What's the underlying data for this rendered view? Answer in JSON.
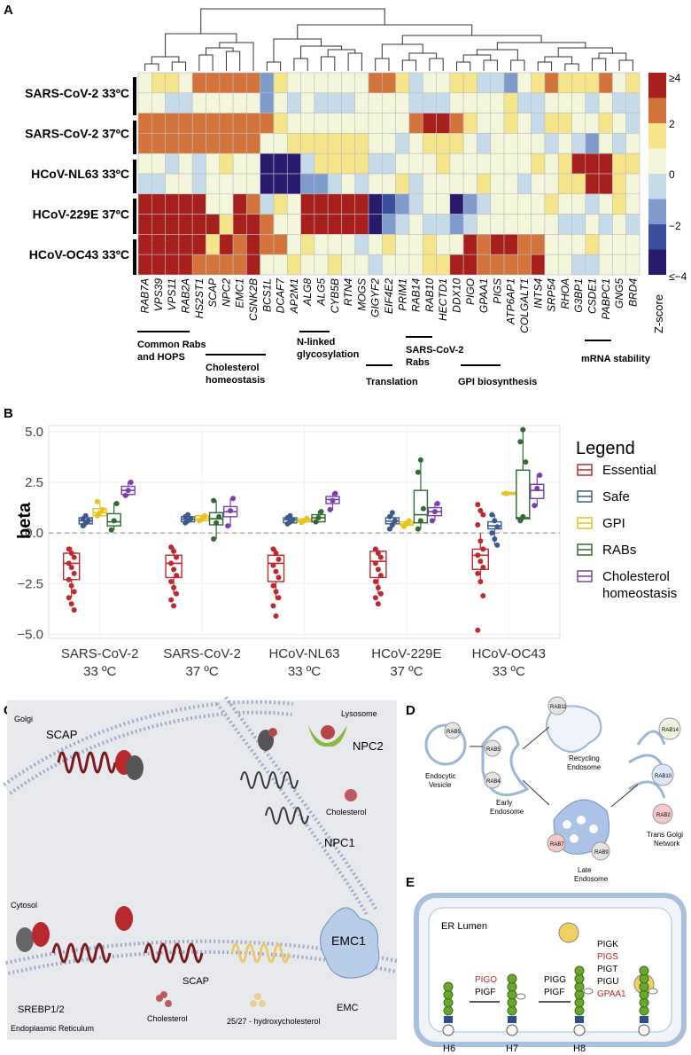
{
  "panels": {
    "a": "A",
    "b": "B",
    "c": "C",
    "d": "D",
    "e": "E"
  },
  "heatmap": {
    "rows": [
      "SARS-CoV-2 33ºC",
      "SARS-CoV-2 37ºC",
      "HCoV-NL63 33ºC",
      "HCoV-229E 37ºC",
      "HCoV-OC43 33ºC"
    ],
    "cols": [
      "RAB7A",
      "VPS39",
      "VPS11",
      "RAB2A",
      "HS2ST1",
      "SCAP",
      "NPC2",
      "EMC1",
      "CSNK2B",
      "BCS1L",
      "DCAF7",
      "AP2M1",
      "ALG8",
      "ALG5",
      "CYB5B",
      "RTN4",
      "MOGS",
      "GIGYF2",
      "EIF4E2",
      "PRIM1",
      "RAB14",
      "RAB10",
      "HECTD1",
      "DDX10",
      "PIGO",
      "GPAA1",
      "PIGS",
      "ATP6AP1",
      "COLGALT1",
      "INTS4",
      "SRP54",
      "RHOA",
      "G3BP1",
      "CSDE1",
      "PABPC1",
      "GNG5",
      "BRD4"
    ],
    "groups": {
      "rabs_hops": "Common Rabs\nand HOPS",
      "cholesterol": "Cholesterol\nhomeostasis",
      "nlinked": "N-linked\nglycosylation",
      "translation": "Translation",
      "sarsrabs": "SARS-CoV-2\nRabs",
      "gpi": "GPI biosynthesis",
      "mrna": "mRNA stability"
    },
    "colorbar": {
      "title": "Z-score",
      "ticks": [
        "≥4",
        "2",
        "0",
        "−2",
        "≤−4"
      ]
    },
    "palette": [
      "#2a1a6e",
      "#3a4f9e",
      "#7f9bcb",
      "#c6dbe9",
      "#f3f6da",
      "#f6e48a",
      "#d2743c",
      "#a8201e"
    ],
    "cells": [
      [
        4,
        5,
        5,
        4,
        6,
        6,
        6,
        6,
        6,
        2,
        5,
        4,
        4,
        4,
        4,
        4,
        4,
        6,
        6,
        5,
        3,
        4,
        4,
        5,
        5,
        3,
        3,
        2,
        4,
        5,
        6,
        5,
        5,
        5,
        6,
        4,
        5
      ],
      [
        4,
        4,
        3,
        3,
        4,
        4,
        4,
        4,
        4,
        2,
        4,
        3,
        4,
        3,
        3,
        3,
        4,
        4,
        4,
        4,
        3,
        3,
        3,
        4,
        4,
        4,
        4,
        5,
        3,
        3,
        4,
        4,
        4,
        3,
        4,
        3,
        3
      ],
      [
        6,
        6,
        6,
        6,
        6,
        6,
        6,
        6,
        6,
        6,
        5,
        4,
        4,
        4,
        4,
        4,
        4,
        4,
        4,
        4,
        6,
        7,
        7,
        6,
        5,
        4,
        4,
        5,
        4,
        3,
        5,
        5,
        4,
        4,
        5,
        4,
        3
      ],
      [
        6,
        6,
        6,
        6,
        6,
        6,
        6,
        6,
        6,
        4,
        4,
        5,
        5,
        5,
        5,
        5,
        5,
        4,
        4,
        3,
        4,
        5,
        5,
        5,
        4,
        3,
        4,
        4,
        4,
        4,
        3,
        4,
        3,
        2,
        4,
        3,
        4
      ],
      [
        4,
        4,
        3,
        4,
        3,
        4,
        5,
        4,
        4,
        0,
        0,
        0,
        3,
        5,
        5,
        5,
        5,
        3,
        3,
        4,
        4,
        4,
        5,
        4,
        4,
        4,
        4,
        4,
        4,
        5,
        4,
        5,
        7,
        7,
        7,
        5,
        5
      ],
      [
        3,
        3,
        4,
        4,
        3,
        4,
        4,
        4,
        4,
        0,
        0,
        0,
        2,
        2,
        3,
        4,
        3,
        4,
        4,
        5,
        3,
        4,
        4,
        4,
        4,
        5,
        4,
        4,
        3,
        4,
        4,
        5,
        5,
        7,
        7,
        5,
        4
      ],
      [
        7,
        7,
        7,
        7,
        7,
        4,
        4,
        7,
        6,
        3,
        5,
        4,
        7,
        7,
        7,
        7,
        7,
        0,
        1,
        2,
        3,
        4,
        4,
        0,
        2,
        3,
        4,
        4,
        4,
        4,
        5,
        4,
        4,
        3,
        4,
        5,
        4
      ],
      [
        7,
        7,
        7,
        7,
        7,
        7,
        5,
        7,
        7,
        6,
        4,
        4,
        7,
        7,
        7,
        7,
        7,
        0,
        2,
        3,
        4,
        3,
        3,
        2,
        3,
        4,
        4,
        4,
        4,
        4,
        4,
        3,
        3,
        4,
        3,
        4,
        3
      ],
      [
        7,
        7,
        7,
        7,
        7,
        5,
        7,
        6,
        7,
        6,
        6,
        4,
        5,
        4,
        4,
        4,
        3,
        4,
        5,
        4,
        4,
        5,
        4,
        4,
        7,
        6,
        7,
        7,
        6,
        6,
        4,
        4,
        4,
        5,
        4,
        4,
        4
      ],
      [
        7,
        7,
        7,
        7,
        6,
        6,
        6,
        6,
        7,
        4,
        4,
        5,
        4,
        4,
        5,
        4,
        4,
        3,
        4,
        4,
        4,
        5,
        5,
        7,
        7,
        6,
        6,
        6,
        6,
        7,
        4,
        4,
        3,
        3,
        4,
        4,
        4
      ]
    ]
  },
  "boxplot": {
    "ylabel": "beta",
    "yticks": [
      "5.0",
      "2.5",
      "0.0",
      "−2.5",
      "−5.0"
    ],
    "ylim": [
      -5.2,
      5.3
    ],
    "legend_title": "Legend",
    "series": [
      {
        "name": "Essential",
        "color": "#c0282c"
      },
      {
        "name": "Safe",
        "color": "#3c5a8e"
      },
      {
        "name": "GPI",
        "color": "#e8c21f"
      },
      {
        "name": "RABs",
        "color": "#2f6a32"
      },
      {
        "name": "Cholesterol homeostasis",
        "label1": "Cholesterol",
        "label2": "homeostasis",
        "color": "#7a3fb0"
      }
    ],
    "conditions": [
      {
        "l1": "SARS-CoV-2",
        "l2": "33 ºC"
      },
      {
        "l1": "SARS-CoV-2",
        "l2": "37 ºC"
      },
      {
        "l1": "HCoV-NL63",
        "l2": "33 ºC"
      },
      {
        "l1": "HCoV-229E",
        "l2": "37 ºC"
      },
      {
        "l1": "HCoV-OC43",
        "l2": "33 ºC"
      }
    ]
  },
  "chart_data": {
    "type": "box",
    "title": "",
    "ylabel": "beta",
    "ylim": [
      -5.2,
      5.3
    ],
    "categories": [
      "SARS-CoV-2 33 ºC",
      "SARS-CoV-2 37 ºC",
      "HCoV-NL63 33 ºC",
      "HCoV-229E 37 ºC",
      "HCoV-OC43 33 ºC"
    ],
    "series": [
      {
        "name": "Essential",
        "boxes": [
          {
            "q1": -2.3,
            "median": -1.5,
            "q3": -1.0,
            "low": -3.2,
            "high": -0.7,
            "points": [
              -0.8,
              -1.0,
              -1.2,
              -1.5,
              -1.7,
              -2.0,
              -2.3,
              -2.6,
              -2.9,
              -3.2,
              -3.5,
              -3.8
            ]
          },
          {
            "q1": -2.2,
            "median": -1.5,
            "q3": -1.1,
            "low": -3.0,
            "high": -0.7,
            "points": [
              -0.7,
              -0.9,
              -1.2,
              -1.5,
              -1.8,
              -2.1,
              -2.4,
              -2.7,
              -3.0,
              -3.3,
              -3.6
            ]
          },
          {
            "q1": -2.4,
            "median": -1.5,
            "q3": -1.1,
            "low": -3.3,
            "high": -0.8,
            "points": [
              -0.8,
              -1.0,
              -1.3,
              -1.6,
              -1.9,
              -2.2,
              -2.6,
              -2.9,
              -3.2,
              -3.6,
              -4.1
            ]
          },
          {
            "q1": -2.2,
            "median": -1.4,
            "q3": -0.9,
            "low": -3.0,
            "high": -0.8,
            "points": [
              -0.8,
              -1.0,
              -1.2,
              -1.5,
              -1.8,
              -2.1,
              -2.4,
              -2.7,
              -3.0,
              -3.2,
              -3.5
            ]
          },
          {
            "q1": -1.8,
            "median": -1.1,
            "q3": -0.8,
            "low": -2.3,
            "high": 0.0,
            "points": [
              1.4,
              1.1,
              0.9,
              0.4,
              -0.4,
              -0.8,
              -1.1,
              -1.4,
              -1.7,
              -2.0,
              -2.4,
              -3.1,
              -4.8
            ]
          }
        ]
      },
      {
        "name": "Safe",
        "boxes": [
          {
            "q1": 0.45,
            "median": 0.6,
            "q3": 0.75,
            "low": 0.3,
            "high": 0.95,
            "points": [
              0.35,
              0.5,
              0.6,
              0.7,
              0.85
            ]
          },
          {
            "q1": 0.55,
            "median": 0.67,
            "q3": 0.8,
            "low": 0.45,
            "high": 0.95,
            "points": [
              0.5,
              0.6,
              0.7,
              0.8,
              0.9
            ]
          },
          {
            "q1": 0.5,
            "median": 0.65,
            "q3": 0.75,
            "low": 0.4,
            "high": 0.9,
            "points": [
              0.45,
              0.55,
              0.65,
              0.75,
              0.85
            ]
          },
          {
            "q1": 0.45,
            "median": 0.58,
            "q3": 0.75,
            "low": 0.2,
            "high": 1.0,
            "points": [
              0.2,
              0.4,
              0.6,
              0.8,
              1.0
            ]
          },
          {
            "q1": 0.2,
            "median": 0.35,
            "q3": 0.55,
            "low": -0.6,
            "high": 0.9,
            "points": [
              0.9,
              0.6,
              0.3,
              0.0,
              -0.3,
              -0.6
            ]
          }
        ]
      },
      {
        "name": "GPI",
        "boxes": [
          {
            "q1": 0.85,
            "median": 1.0,
            "q3": 1.2,
            "low": 0.8,
            "high": 1.6,
            "points": [
              0.85,
              1.0,
              1.15,
              1.55
            ]
          },
          {
            "q1": 0.6,
            "median": 0.7,
            "q3": 0.85,
            "low": 0.55,
            "high": 0.9,
            "points": [
              0.6,
              0.7,
              0.85
            ]
          },
          {
            "q1": 0.55,
            "median": 0.62,
            "q3": 0.7,
            "low": 0.5,
            "high": 0.75,
            "points": [
              0.52,
              0.62,
              0.72
            ]
          },
          {
            "q1": 0.38,
            "median": 0.45,
            "q3": 0.55,
            "low": 0.3,
            "high": 0.62,
            "points": [
              0.32,
              0.45,
              0.6
            ]
          },
          {
            "q1": 1.9,
            "median": 1.95,
            "q3": 2.0,
            "low": 1.9,
            "high": 2.0,
            "points": [
              1.95
            ]
          }
        ]
      },
      {
        "name": "RABs",
        "boxes": [
          {
            "q1": 0.35,
            "median": 0.55,
            "q3": 0.95,
            "low": 0.15,
            "high": 1.5,
            "points": [
              0.15,
              0.6,
              1.45
            ]
          },
          {
            "q1": 0.4,
            "median": 0.7,
            "q3": 1.0,
            "low": -0.3,
            "high": 1.6,
            "points": [
              -0.3,
              0.5,
              0.8,
              1.6
            ]
          },
          {
            "q1": 0.55,
            "median": 0.75,
            "q3": 0.9,
            "low": 0.5,
            "high": 1.1,
            "points": [
              0.55,
              0.75,
              1.05
            ]
          },
          {
            "q1": 0.5,
            "median": 0.9,
            "q3": 2.1,
            "low": 0.2,
            "high": 3.6,
            "points": [
              0.2,
              0.6,
              1.2,
              3.0,
              3.6
            ]
          },
          {
            "q1": 0.7,
            "median": 0.75,
            "q3": 3.1,
            "low": 0.6,
            "high": 5.1,
            "points": [
              0.6,
              0.8,
              3.5,
              4.5,
              5.1
            ]
          }
        ]
      },
      {
        "name": "Cholesterol homeostasis",
        "boxes": [
          {
            "q1": 1.9,
            "median": 2.1,
            "q3": 2.3,
            "low": 1.8,
            "high": 2.55,
            "points": [
              1.85,
              2.1,
              2.5
            ]
          },
          {
            "q1": 0.8,
            "median": 1.05,
            "q3": 1.3,
            "low": 0.3,
            "high": 1.7,
            "points": [
              0.35,
              1.1,
              1.7
            ]
          },
          {
            "q1": 1.45,
            "median": 1.65,
            "q3": 1.8,
            "low": 1.1,
            "high": 2.0,
            "points": [
              1.15,
              1.6,
              1.95
            ]
          },
          {
            "q1": 0.85,
            "median": 1.05,
            "q3": 1.25,
            "low": 0.6,
            "high": 1.5,
            "points": [
              0.6,
              1.05,
              1.45
            ]
          },
          {
            "q1": 1.7,
            "median": 2.1,
            "q3": 2.4,
            "low": 1.3,
            "high": 2.9,
            "points": [
              1.35,
              2.2,
              2.85
            ]
          }
        ]
      }
    ]
  },
  "panel_c": {
    "golgi": "Golgi",
    "lysosome": "Lysosome",
    "cytosol": "Cytosol",
    "er": "Endoplasmic Reticulum",
    "scap_top": "SCAP",
    "npc2": "NPC2",
    "npc1": "NPC1",
    "cholesterol_top": "Cholesterol",
    "srebp": "SREBP1/2",
    "scap_bottom": "SCAP",
    "cholesterol_bottom": "Cholesterol",
    "hydroxy": "25/27 - hydroxycholesterol",
    "emc1": "EMC1",
    "emc": "EMC"
  },
  "panel_d": {
    "rab5": "RAB5",
    "rab5b": "RAB5",
    "rab4": "RAB4",
    "rab11": "RAB11",
    "rab14": "RAB14",
    "rab10": "RAB10",
    "rab2": "RAB2",
    "rab7": "RAB7",
    "rab9": "RAB9",
    "endocytic": "Endocytic\nVesicle",
    "early": "Early\nEndosome",
    "recycling": "Recycling\nEndosome",
    "late": "Late\nEndosome",
    "tgn": "Trans Golgi\nNetwork"
  },
  "panel_e": {
    "lumen": "ER Lumen",
    "step1": [
      "PIGO",
      "PIGF"
    ],
    "step2": [
      "PIGG",
      "PIGF"
    ],
    "step3": [
      "PIGK",
      "PIGS",
      "PIGT",
      "PIGU",
      "GPAA1"
    ],
    "h": [
      "H6",
      "H7",
      "H8"
    ]
  }
}
